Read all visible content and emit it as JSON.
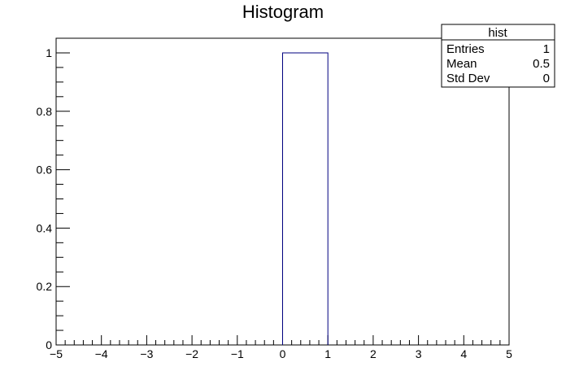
{
  "chart_data": {
    "type": "bar",
    "title": "Histogram",
    "xlabel": "",
    "ylabel": "",
    "xlim": [
      -5,
      5
    ],
    "ylim": [
      0,
      1.05
    ],
    "bins": [
      {
        "x0": 0,
        "x1": 1,
        "value": 1
      }
    ],
    "x_ticks": [
      "-5",
      "-4",
      "-3",
      "-2",
      "-1",
      "0",
      "1",
      "2",
      "3",
      "4",
      "5"
    ],
    "y_ticks": [
      "0",
      "0.2",
      "0.4",
      "0.6",
      "0.8",
      "1"
    ],
    "grid": false,
    "line_color": "#00007f",
    "stats_box": {
      "title": "hist",
      "placement": "top-right",
      "rows": [
        {
          "label": "Entries",
          "value": "1"
        },
        {
          "label": "Mean",
          "value": "0.5"
        },
        {
          "label": "Std Dev",
          "value": "0"
        }
      ]
    }
  }
}
